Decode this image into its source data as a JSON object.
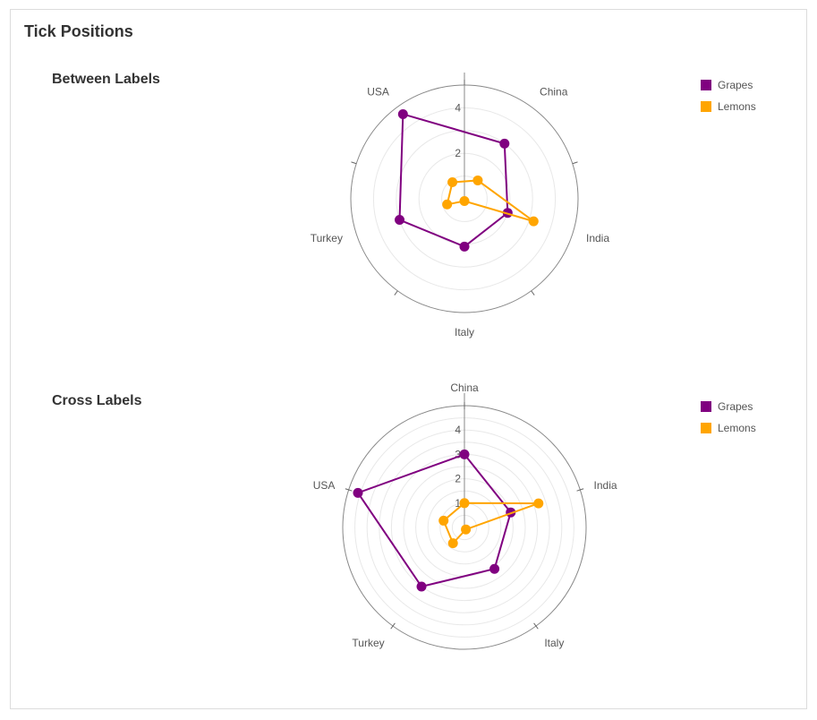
{
  "page_title": "Tick Positions",
  "chart_data": [
    {
      "type": "radar",
      "title": "Between Labels",
      "categories": [
        "China",
        "India",
        "Italy",
        "Turkey",
        "USA"
      ],
      "rlim": [
        0,
        5
      ],
      "tick_values": [
        2,
        4
      ],
      "tick_labels": [
        "2",
        "4"
      ],
      "tick_position": "between",
      "series": [
        {
          "name": "Grapes",
          "color": "#800080",
          "values": [
            3,
            2,
            2.1,
            3,
            4.6
          ]
        },
        {
          "name": "Lemons",
          "color": "#FFA500",
          "values": [
            1,
            3.2,
            0.1,
            0.8,
            0.9
          ]
        }
      ],
      "legend": "top-right",
      "grid": true
    },
    {
      "type": "radar",
      "title": "Cross Labels",
      "categories": [
        "China",
        "India",
        "Italy",
        "Turkey",
        "USA"
      ],
      "rlim": [
        0,
        5
      ],
      "tick_values": [
        1,
        2,
        3,
        4
      ],
      "tick_labels": [
        "1",
        "2",
        "3",
        "4"
      ],
      "tick_position": "cross",
      "series": [
        {
          "name": "Grapes",
          "color": "#800080",
          "values": [
            3,
            2,
            2.1,
            3,
            4.6
          ]
        },
        {
          "name": "Lemons",
          "color": "#FFA500",
          "values": [
            1,
            3.2,
            0.1,
            0.8,
            0.9
          ]
        }
      ],
      "legend": "top-right",
      "grid": true
    }
  ]
}
